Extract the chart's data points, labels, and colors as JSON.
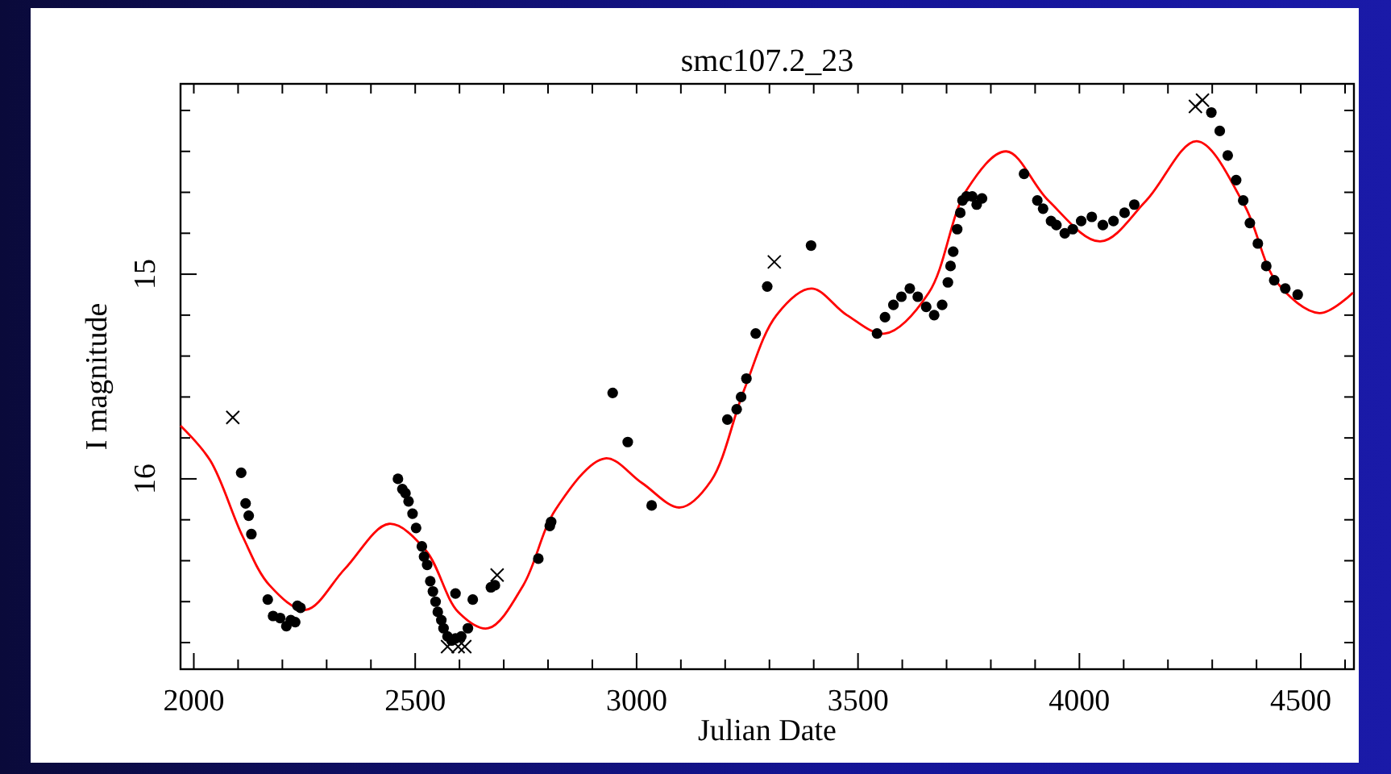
{
  "chart_data": {
    "type": "scatter",
    "title": "smc107.2_23",
    "xlabel": "Julian Date",
    "ylabel": "I magnitude",
    "xlim": [
      1970,
      4620
    ],
    "ylim": [
      16.93,
      14.07
    ],
    "xticks": [
      2000,
      {
        "value": 2100,
        "label": null
      },
      {
        "value": 2200,
        "label": null
      },
      {
        "value": 2300,
        "label": null
      },
      {
        "value": 2400,
        "label": null
      },
      2500,
      {
        "value": 2600,
        "label": null
      },
      {
        "value": 2700,
        "label": null
      },
      {
        "value": 2800,
        "label": null
      },
      {
        "value": 2900,
        "label": null
      },
      3000,
      {
        "value": 3100,
        "label": null
      },
      {
        "value": 3200,
        "label": null
      },
      {
        "value": 3300,
        "label": null
      },
      {
        "value": 3400,
        "label": null
      },
      3500,
      {
        "value": 3600,
        "label": null
      },
      {
        "value": 3700,
        "label": null
      },
      {
        "value": 3800,
        "label": null
      },
      {
        "value": 3900,
        "label": null
      },
      4000,
      {
        "value": 4100,
        "label": null
      },
      {
        "value": 4200,
        "label": null
      },
      {
        "value": 4300,
        "label": null
      },
      {
        "value": 4400,
        "label": null
      },
      4500,
      {
        "value": 4600,
        "label": null
      }
    ],
    "yticks": [
      {
        "value": 14.2,
        "label": null
      },
      {
        "value": 14.4,
        "label": null
      },
      {
        "value": 14.6,
        "label": null
      },
      {
        "value": 14.8,
        "label": null
      },
      15,
      {
        "value": 15.2,
        "label": null
      },
      {
        "value": 15.4,
        "label": null
      },
      {
        "value": 15.6,
        "label": null
      },
      {
        "value": 15.8,
        "label": null
      },
      16,
      {
        "value": 16.2,
        "label": null
      },
      {
        "value": 16.4,
        "label": null
      },
      {
        "value": 16.6,
        "label": null
      },
      {
        "value": 16.8,
        "label": null
      }
    ],
    "grid": false,
    "series": [
      {
        "type": "line",
        "color": "#ff0000",
        "marker": "none",
        "line_style": "solid",
        "x": [
          1970,
          2037,
          2110,
          2171,
          2253,
          2341,
          2441,
          2524,
          2597,
          2665,
          2744,
          2817,
          2929,
          3012,
          3098,
          3168,
          3242,
          3316,
          3395,
          3475,
          3561,
          3660,
          3745,
          3835,
          3930,
          4047,
          4151,
          4265,
          4372,
          4446,
          4542,
          4618
        ],
        "values": [
          15.74,
          15.91,
          16.28,
          16.52,
          16.64,
          16.44,
          16.22,
          16.35,
          16.65,
          16.73,
          16.52,
          16.15,
          15.9,
          16.02,
          16.14,
          16.01,
          15.57,
          15.2,
          15.07,
          15.2,
          15.29,
          15.09,
          14.59,
          14.4,
          14.64,
          14.84,
          14.64,
          14.35,
          14.66,
          15.04,
          15.19,
          15.09
        ]
      },
      {
        "color": "#000000",
        "marker": "circle",
        "x": [
          2107,
          2117,
          2124,
          2130,
          2167,
          2179,
          2195,
          2209,
          2219,
          2229,
          2234,
          2241,
          2461,
          2471,
          2478,
          2485,
          2494,
          2502,
          2515,
          2520,
          2527,
          2534,
          2540,
          2546,
          2551,
          2559,
          2564,
          2573,
          2582,
          2591,
          2604,
          2591,
          2619,
          2630,
          2671,
          2680,
          2778,
          2804,
          2807,
          2946,
          2980,
          3034,
          3205,
          3226,
          3236,
          3248,
          3269,
          3295,
          3394,
          3543,
          3561,
          3580,
          3598,
          3617,
          3635,
          3654,
          3672,
          3690,
          3703,
          3709,
          3715,
          3724,
          3731,
          3736,
          3745,
          3758,
          3768,
          3780,
          3875,
          3905,
          3918,
          3936,
          3948,
          3967,
          3985,
          4004,
          4028,
          4053,
          4077,
          4102,
          4124,
          4298,
          4317,
          4335,
          4354,
          4370,
          4385,
          4403,
          4422,
          4440,
          4465,
          4493
        ],
        "values": [
          15.97,
          16.12,
          16.18,
          16.27,
          16.59,
          16.67,
          16.68,
          16.72,
          16.69,
          16.7,
          16.62,
          16.63,
          16.0,
          16.05,
          16.07,
          16.11,
          16.17,
          16.24,
          16.33,
          16.38,
          16.42,
          16.5,
          16.55,
          16.6,
          16.65,
          16.69,
          16.73,
          16.77,
          16.79,
          16.78,
          16.77,
          16.56,
          16.73,
          16.59,
          16.53,
          16.52,
          16.39,
          16.23,
          16.21,
          15.58,
          15.82,
          16.13,
          15.71,
          15.66,
          15.6,
          15.51,
          15.29,
          15.06,
          14.86,
          15.29,
          15.21,
          15.15,
          15.11,
          15.07,
          15.11,
          15.16,
          15.2,
          15.15,
          15.04,
          14.96,
          14.89,
          14.78,
          14.7,
          14.64,
          14.62,
          14.62,
          14.66,
          14.63,
          14.51,
          14.64,
          14.68,
          14.74,
          14.76,
          14.8,
          14.78,
          14.74,
          14.72,
          14.76,
          14.74,
          14.7,
          14.66,
          14.21,
          14.3,
          14.42,
          14.54,
          14.64,
          14.75,
          14.85,
          14.96,
          15.03,
          15.07,
          15.1
        ]
      },
      {
        "color": "#000000",
        "marker": "cross",
        "x": [
          2088,
          2573,
          2597,
          2612,
          2685,
          3311,
          4262,
          4278
        ],
        "values": [
          15.7,
          16.82,
          16.82,
          16.82,
          16.47,
          14.94,
          14.18,
          14.15
        ]
      }
    ]
  }
}
